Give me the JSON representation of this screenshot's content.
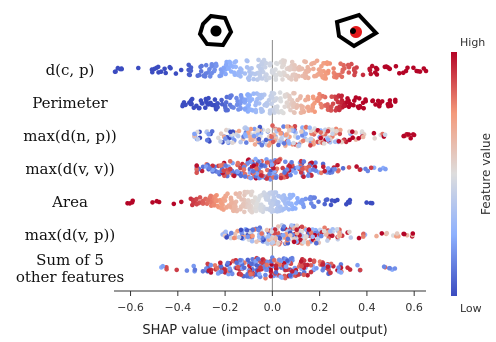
{
  "chart_data": {
    "type": "scatter",
    "subtype": "beeswarm",
    "xlabel": "SHAP value (impact on model output)",
    "xlim": [
      -0.67,
      0.65
    ],
    "xticks": [
      -0.6,
      -0.4,
      -0.2,
      0.0,
      0.2,
      0.4,
      0.6
    ],
    "xtick_labels": [
      "−0.6",
      "−0.4",
      "−0.2",
      "0.0",
      "0.2",
      "0.4",
      "0.6"
    ],
    "features": [
      {
        "name_line1": "d(c, p)",
        "name_line2": "",
        "min": -0.67,
        "max": 0.65,
        "core": [
          -0.3,
          0.35
        ],
        "corr": 1,
        "spread": 0.22
      },
      {
        "name_line1": "Perimeter",
        "name_line2": "",
        "min": -0.38,
        "max": 0.52,
        "core": [
          -0.25,
          0.33
        ],
        "corr": 1,
        "spread": 0.2
      },
      {
        "name_line1": "max(d(n, p))",
        "name_line2": "",
        "min": -0.33,
        "max": 0.6,
        "core": [
          -0.22,
          0.3
        ],
        "corr": 0.4,
        "spread": 0.16
      },
      {
        "name_line1": "max(d(v, v))",
        "name_line2": "",
        "min": -0.32,
        "max": 0.48,
        "core": [
          -0.22,
          0.18
        ],
        "corr": -0.2,
        "spread": 0.14
      },
      {
        "name_line1": "Area",
        "name_line2": "",
        "min": -0.62,
        "max": 0.43,
        "core": [
          -0.25,
          0.12
        ],
        "corr": -1,
        "spread": 0.15
      },
      {
        "name_line1": "max(d(v, p))",
        "name_line2": "",
        "min": -0.22,
        "max": 0.6,
        "core": [
          -0.1,
          0.25
        ],
        "corr": 0.3,
        "spread": 0.12
      },
      {
        "name_line1": "Sum of 5",
        "name_line2": "other features",
        "min": -0.48,
        "max": 0.52,
        "core": [
          -0.2,
          0.22
        ],
        "corr": 0.1,
        "spread": 0.1
      }
    ],
    "colorbar": {
      "title": "Feature value",
      "high": "High",
      "low": "Low"
    },
    "colors": {
      "low": "#3b4cc0",
      "mid": "#dddddd",
      "high": "#b40426"
    },
    "annotations": [
      "regular-polygon-icon",
      "irregular-polygon-icon"
    ]
  }
}
